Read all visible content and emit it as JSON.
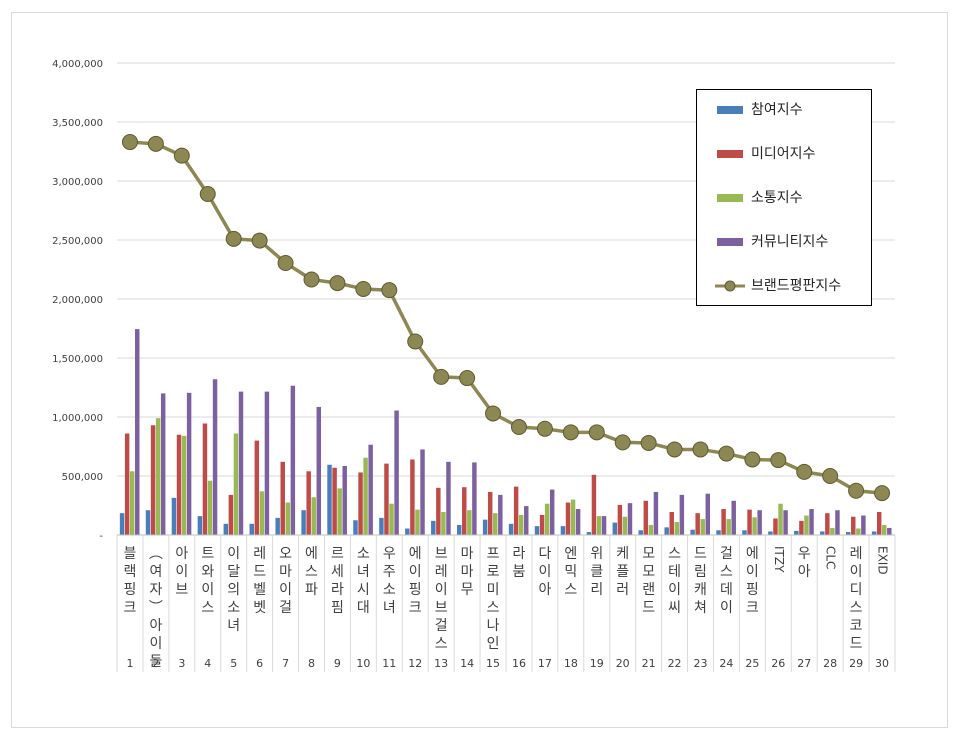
{
  "chart_data": {
    "type": "bar",
    "title": "",
    "xlabel": "",
    "ylabel": "",
    "ylim": [
      0,
      4000000
    ],
    "y_ticks": [
      "-",
      "500,000",
      "1,000,000",
      "1,500,000",
      "2,000,000",
      "2,500,000",
      "3,000,000",
      "3,500,000",
      "4,000,000"
    ],
    "grid": true,
    "legend_position": "top-right",
    "ranks": [
      "1",
      "2",
      "3",
      "4",
      "5",
      "6",
      "7",
      "8",
      "9",
      "10",
      "11",
      "12",
      "13",
      "14",
      "15",
      "16",
      "17",
      "18",
      "19",
      "20",
      "21",
      "22",
      "23",
      "24",
      "25",
      "26",
      "27",
      "28",
      "29",
      "30"
    ],
    "categories": [
      "블랙핑크",
      "(여자)아이들",
      "아이브",
      "트와이스",
      "이달의소녀",
      "레드벨벳",
      "오마이걸",
      "에스파",
      "르세라핌",
      "소녀시대",
      "우주소녀",
      "에이핑크",
      "브레이브걸스",
      "마마무",
      "프로미스나인",
      "라붐",
      "다이아",
      "엔믹스",
      "위클리",
      "케플러",
      "모모랜드",
      "스테이씨",
      "드림캐쳐",
      "걸스데이",
      "에이핑크",
      "ITZY",
      "우아",
      "CLC",
      "레이디스코드",
      "EXID"
    ],
    "series": [
      {
        "name": "참여지수",
        "type": "bar",
        "color": "#4a7ebb",
        "values": [
          185000,
          210000,
          315000,
          160000,
          95000,
          95000,
          145000,
          210000,
          595000,
          125000,
          145000,
          55000,
          120000,
          85000,
          130000,
          95000,
          75000,
          75000,
          25000,
          105000,
          40000,
          65000,
          45000,
          40000,
          40000,
          30000,
          35000,
          30000,
          25000,
          30000
        ]
      },
      {
        "name": "미디어지수",
        "type": "bar",
        "color": "#be4b48",
        "values": [
          860000,
          930000,
          850000,
          945000,
          340000,
          800000,
          620000,
          540000,
          570000,
          530000,
          605000,
          640000,
          400000,
          405000,
          365000,
          410000,
          170000,
          275000,
          510000,
          255000,
          290000,
          195000,
          185000,
          220000,
          215000,
          140000,
          120000,
          185000,
          155000,
          195000
        ]
      },
      {
        "name": "소통지수",
        "type": "bar",
        "color": "#98b954",
        "values": [
          540000,
          990000,
          840000,
          460000,
          860000,
          370000,
          275000,
          320000,
          395000,
          655000,
          265000,
          215000,
          195000,
          210000,
          185000,
          170000,
          265000,
          300000,
          160000,
          155000,
          85000,
          110000,
          135000,
          135000,
          150000,
          265000,
          165000,
          60000,
          55000,
          85000
        ]
      },
      {
        "name": "커뮤니티지수",
        "type": "bar",
        "color": "#7d60a0",
        "values": [
          1745000,
          1200000,
          1205000,
          1320000,
          1215000,
          1215000,
          1265000,
          1085000,
          585000,
          765000,
          1055000,
          725000,
          620000,
          615000,
          340000,
          245000,
          385000,
          220000,
          160000,
          270000,
          365000,
          340000,
          350000,
          290000,
          210000,
          210000,
          220000,
          210000,
          165000,
          60000
        ]
      },
      {
        "name": "브랜드평판지수",
        "type": "line",
        "color": "#8d8753",
        "values": [
          3330000,
          3315000,
          3215000,
          2890000,
          2510000,
          2495000,
          2305000,
          2165000,
          2135000,
          2085000,
          2075000,
          1640000,
          1340000,
          1330000,
          1030000,
          915000,
          900000,
          870000,
          870000,
          785000,
          780000,
          725000,
          725000,
          690000,
          640000,
          635000,
          535000,
          500000,
          375000,
          355000
        ]
      }
    ]
  }
}
